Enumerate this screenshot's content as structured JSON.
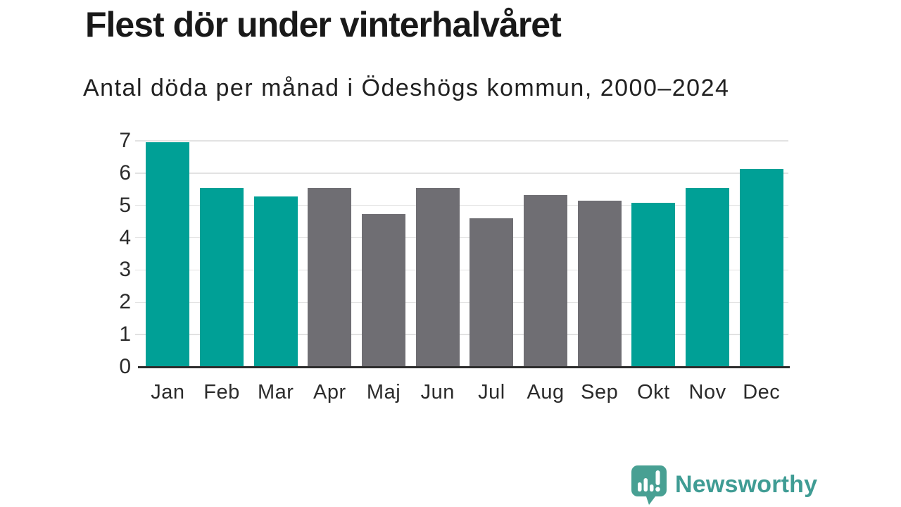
{
  "header": {
    "title": "Flest dör under vinterhalvåret",
    "subtitle": "Antal döda per månad i Ödeshögs kommun, 2000–2024"
  },
  "chart_data": {
    "type": "bar",
    "title": "Flest dör under vinterhalvåret",
    "subtitle": "Antal döda per månad i Ödeshögs kommun, 2000–2024",
    "categories": [
      "Jan",
      "Feb",
      "Mar",
      "Apr",
      "Maj",
      "Jun",
      "Jul",
      "Aug",
      "Sep",
      "Okt",
      "Nov",
      "Dec"
    ],
    "values": [
      6.96,
      5.54,
      5.28,
      5.54,
      4.74,
      5.54,
      4.6,
      5.33,
      5.14,
      5.08,
      5.54,
      6.13
    ],
    "bar_color_keys": [
      "winter",
      "winter",
      "winter",
      "summer",
      "summer",
      "summer",
      "summer",
      "summer",
      "summer",
      "winter",
      "winter",
      "winter"
    ],
    "palette": {
      "winter": "#00a096",
      "summer": "#6f6e73"
    },
    "xlabel": "",
    "ylabel": "",
    "ylim": [
      0,
      7
    ],
    "yticks": [
      0,
      1,
      2,
      3,
      4,
      5,
      6,
      7
    ],
    "grid": true,
    "legend": "none",
    "gridline_color": "#e2e2e2",
    "axis_line_color": "#2d2d2d",
    "text_color": "#2b2b2b"
  },
  "footer": {
    "brand": "Newsworthy",
    "brand_color": "#3f9c94",
    "logo_bubble_color": "#48a093",
    "logo_icon": "newsworthy-speech-bubble-chart-icon"
  }
}
